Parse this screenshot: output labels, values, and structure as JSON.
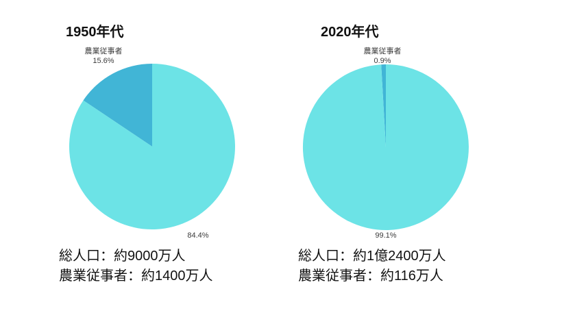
{
  "colors": {
    "worker_slice": "#41b5d6",
    "rest_slice": "#6ce3e6",
    "title_text": "#111111",
    "label_text": "#3a3a3a",
    "background": "#ffffff"
  },
  "chart_data": [
    {
      "type": "pie",
      "title": "1950年代",
      "values": [
        15.6,
        84.4
      ],
      "slice_names": [
        "農業従事者",
        ""
      ],
      "pct_labels": [
        "15.6%",
        "84.4%"
      ],
      "colors": [
        "#41b5d6",
        "#6ce3e6"
      ],
      "start_angle_deg": 90,
      "direction": "counterclockwise",
      "legend_position": "none",
      "notes": [
        "総人口：約9000万人",
        "農業従事者：約1400万人"
      ]
    },
    {
      "type": "pie",
      "title": "2020年代",
      "values": [
        0.9,
        99.1
      ],
      "slice_names": [
        "農業従事者",
        ""
      ],
      "pct_labels": [
        "0.9%",
        "99.1%"
      ],
      "colors": [
        "#41b5d6",
        "#6ce3e6"
      ],
      "start_angle_deg": 90,
      "direction": "counterclockwise",
      "legend_position": "none",
      "notes": [
        "総人口：約1億2400万人",
        "農業従事者：約116万人"
      ]
    }
  ]
}
